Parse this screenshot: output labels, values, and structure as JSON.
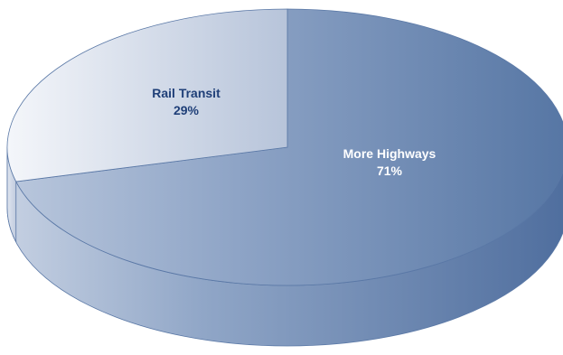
{
  "chart_data": {
    "type": "pie",
    "style": "3d",
    "title": "",
    "categories": [
      "More Highways",
      "Rail Transit"
    ],
    "values": [
      71,
      29
    ],
    "slices": [
      {
        "name": "More Highways",
        "value": 71,
        "label": "More Highways",
        "value_label": "71%",
        "color": "#5b7aa8",
        "label_color": "#ffffff"
      },
      {
        "name": "Rail Transit",
        "value": 29,
        "label": "Rail Transit",
        "value_label": "29%",
        "color": "#e8edf5",
        "label_color": "#1f3f78"
      }
    ],
    "legend": "none"
  },
  "colors": {
    "dark_blue": "#4f6e9e",
    "mid_blue": "#7c96bd",
    "light_blue": "#eef2f8",
    "edge": "#5a78a6",
    "label_dark": "#1f3f78"
  }
}
